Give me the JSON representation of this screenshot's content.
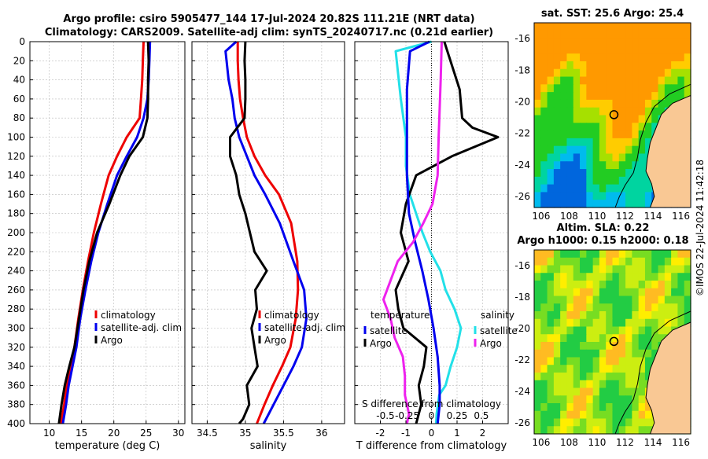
{
  "title": {
    "line1": "Argo profile: csiro 5905477_144 17-Jul-2024 20.82S 111.21E (NRT data)",
    "line2": "Climatology: CARS2009. Satellite-adj clim: synTS_20240717.nc (0.21d earlier)"
  },
  "colors": {
    "climatology": "#ee0000",
    "satellite": "#0000ee",
    "argo": "#000000",
    "temp_diff": "#22e0e8",
    "sal_diff": "#ee22ee"
  },
  "chart_data": [
    {
      "type": "line",
      "name": "temperature",
      "xlabel": "temperature (deg C)",
      "ylabel": "",
      "xlim": [
        7,
        31
      ],
      "ylim": [
        400,
        0
      ],
      "xticks": [
        10,
        15,
        20,
        25,
        30
      ],
      "yticks": [
        0,
        20,
        40,
        60,
        80,
        100,
        120,
        140,
        160,
        180,
        200,
        220,
        240,
        260,
        280,
        300,
        320,
        340,
        360,
        380,
        400
      ],
      "legend": [
        "climatology",
        "satellite-adj. clim",
        "Argo"
      ],
      "series": [
        {
          "name": "climatology",
          "x": [
            24.6,
            24.5,
            24.4,
            24.2,
            24.0,
            22.0,
            20.5,
            19.2,
            18.0,
            16.9,
            16.0,
            15.2,
            14.5,
            13.9,
            13.3,
            12.7,
            12.3,
            11.8
          ],
          "y": [
            0,
            20,
            40,
            60,
            80,
            100,
            120,
            140,
            170,
            200,
            230,
            260,
            290,
            320,
            340,
            360,
            380,
            400
          ]
        },
        {
          "name": "satellite-adj. clim",
          "x": [
            25.6,
            25.5,
            25.4,
            25.2,
            24.6,
            23.6,
            22.0,
            20.5,
            19.0,
            17.6,
            16.5,
            15.6,
            14.8,
            14.2,
            13.6,
            13.0,
            12.6,
            12.1
          ],
          "y": [
            0,
            20,
            40,
            60,
            80,
            100,
            120,
            140,
            170,
            200,
            230,
            260,
            290,
            320,
            340,
            360,
            380,
            400
          ]
        },
        {
          "name": "Argo",
          "x": [
            25.3,
            25.4,
            25.3,
            25.3,
            25.2,
            24.5,
            22.4,
            21.0,
            19.3,
            17.4,
            16.2,
            15.3,
            14.6,
            13.9,
            13.1,
            12.4,
            11.9,
            11.5
          ],
          "y": [
            0,
            20,
            40,
            60,
            80,
            100,
            120,
            140,
            170,
            200,
            230,
            260,
            290,
            320,
            340,
            360,
            380,
            400
          ]
        }
      ]
    },
    {
      "type": "line",
      "name": "salinity",
      "xlabel": "salinity",
      "ylabel": "",
      "xlim": [
        34.3,
        36.3
      ],
      "ylim": [
        400,
        0
      ],
      "xticks": [
        34.5,
        35,
        35.5,
        36
      ],
      "legend": [
        "climatology",
        "satellite-adj. clim",
        "Argo"
      ],
      "series": [
        {
          "name": "climatology",
          "x": [
            34.9,
            34.9,
            34.91,
            34.93,
            34.97,
            35.02,
            35.12,
            35.26,
            35.44,
            35.6,
            35.68,
            35.69,
            35.66,
            35.59,
            35.48,
            35.36,
            35.25,
            35.15
          ],
          "y": [
            0,
            20,
            40,
            60,
            80,
            100,
            120,
            140,
            160,
            190,
            230,
            260,
            290,
            320,
            340,
            360,
            380,
            400
          ]
        },
        {
          "name": "satellite-adj. clim",
          "x": [
            34.88,
            34.74,
            34.78,
            34.83,
            34.86,
            34.92,
            35.02,
            35.12,
            35.26,
            35.45,
            35.63,
            35.77,
            35.8,
            35.74,
            35.63,
            35.5,
            35.37,
            35.24
          ],
          "y": [
            0,
            10,
            40,
            60,
            80,
            100,
            120,
            140,
            160,
            190,
            230,
            260,
            290,
            320,
            340,
            360,
            380,
            400
          ]
        },
        {
          "name": "Argo",
          "x": [
            35.0,
            34.99,
            35.0,
            35.0,
            34.99,
            34.8,
            34.8,
            34.88,
            34.92,
            35.0,
            35.06,
            35.12,
            35.28,
            35.13,
            35.15,
            35.08,
            35.12,
            35.16,
            35.02,
            35.05,
            34.97,
            34.92
          ],
          "y": [
            0,
            20,
            40,
            60,
            80,
            100,
            120,
            140,
            160,
            180,
            200,
            220,
            240,
            260,
            280,
            300,
            320,
            340,
            360,
            380,
            395,
            400
          ]
        }
      ]
    },
    {
      "type": "line",
      "name": "differences",
      "xlabel": "T difference from climatology",
      "ylabel": "",
      "top_label": "S difference from climatology",
      "xlim": [
        -3,
        3
      ],
      "ylim": [
        400,
        0
      ],
      "xticks": [
        -2,
        -1,
        0,
        1,
        2
      ],
      "top_ticks": [
        "-0.5",
        "-0.25",
        "0",
        "0.25",
        "0.5"
      ],
      "legend": {
        "temperature": [
          "satellite",
          "Argo"
        ],
        "salinity": [
          "satellite",
          "Argo"
        ]
      },
      "series": [
        {
          "name": "T satellite",
          "x": [
            0.0,
            -1.4,
            -1.2,
            -1.0,
            -1.0,
            -0.85,
            -0.6,
            -0.35,
            -0.05,
            0.35,
            0.55,
            0.9,
            1.15,
            1.0,
            0.75,
            0.55,
            0.3,
            0.2,
            0.18
          ],
          "y": [
            0,
            10,
            60,
            100,
            130,
            160,
            180,
            200,
            220,
            240,
            260,
            280,
            300,
            320,
            340,
            360,
            370,
            390,
            400
          ]
        },
        {
          "name": "T Argo",
          "x": [
            0.5,
            1.1,
            1.2,
            1.6,
            2.6,
            0.8,
            -0.6,
            -1.0,
            -1.2,
            -0.9,
            -1.4,
            -1.3,
            -1.1,
            -0.2,
            -0.3,
            -0.5,
            -0.4,
            -0.6
          ],
          "y": [
            0,
            50,
            80,
            90,
            100,
            120,
            140,
            170,
            200,
            230,
            260,
            280,
            300,
            320,
            340,
            360,
            380,
            400
          ]
        },
        {
          "name": "S satellite",
          "x": [
            -0.02,
            -0.21,
            -0.24,
            -0.24,
            -0.24,
            -0.22,
            -0.16,
            -0.09,
            -0.03,
            0.02,
            0.06,
            0.08,
            0.08,
            0.06
          ],
          "y": [
            0,
            10,
            50,
            100,
            140,
            180,
            210,
            240,
            270,
            300,
            330,
            360,
            380,
            400
          ]
        },
        {
          "name": "S Argo",
          "x": [
            0.1,
            0.09,
            0.08,
            0.07,
            0.06,
            0.01,
            -0.08,
            -0.18,
            -0.33,
            -0.4,
            -0.47,
            -0.4,
            -0.36,
            -0.28,
            -0.26,
            -0.26,
            -0.22,
            -0.24
          ],
          "y": [
            0,
            40,
            70,
            100,
            140,
            170,
            190,
            210,
            230,
            250,
            270,
            290,
            310,
            330,
            350,
            370,
            390,
            400
          ]
        }
      ]
    },
    {
      "type": "heatmap",
      "name": "sst_map",
      "title": "sat. SST: 25.6 Argo: 25.4",
      "xticks": [
        106,
        108,
        110,
        112,
        114,
        116
      ],
      "yticks": [
        -16,
        -18,
        -20,
        -22,
        -24,
        -26
      ],
      "xlim": [
        105.5,
        116.7
      ],
      "ylim": [
        -26.7,
        -15.0
      ],
      "marker": {
        "lon": 111.21,
        "lat": -20.82
      }
    },
    {
      "type": "heatmap",
      "name": "sla_map",
      "title_line1": "Altim. SLA: 0.22",
      "title_line2": "Argo h1000: 0.15 h2000: 0.18",
      "xticks": [
        106,
        108,
        110,
        112,
        114,
        116
      ],
      "yticks": [
        -16,
        -18,
        -20,
        -22,
        -24,
        -26
      ],
      "xlim": [
        105.5,
        116.7
      ],
      "ylim": [
        -26.7,
        -15.0
      ],
      "marker": {
        "lon": 111.21,
        "lat": -20.82
      }
    }
  ],
  "credit": "©IMOS 22-Jul-2024 11:42:18"
}
